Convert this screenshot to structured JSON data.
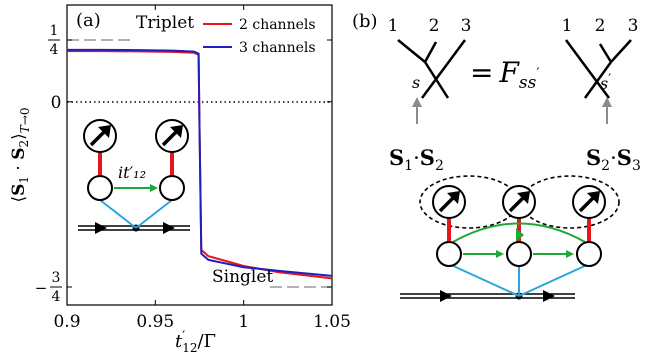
{
  "panel_a": {
    "label": "(a)",
    "ylabel": "⟨S₁ · S₂⟩_{T→0}",
    "xlabel": "t′₁₂/Γ",
    "yticks": [
      "1/4",
      "0",
      "−3/4"
    ],
    "xticks": [
      "0.9",
      "0.95",
      "1",
      "1.05"
    ],
    "triplet_label": "Triplet",
    "singlet_label": "Singlet",
    "legend": [
      "2 channels",
      "3 channels"
    ],
    "hopping_label": "it′₁₂"
  },
  "panel_b": {
    "label": "(b)",
    "tree_left_labels": [
      "1",
      "2",
      "3"
    ],
    "tree_right_labels": [
      "1",
      "2",
      "3"
    ],
    "s_label": "s",
    "s_prime_label": "s′",
    "equation": "= F_{ss′}",
    "left_operator": "S₁·S₂",
    "right_operator": "S₂·S₃"
  },
  "colors": {
    "red": "#e8141e",
    "blue": "#1f1fbf",
    "green": "#1fa83a",
    "cyan": "#2aa6dc",
    "gray": "#8c8c8c"
  },
  "chart_data": {
    "type": "line",
    "xlabel": "t′₁₂/Γ",
    "ylabel": "⟨S₁ · S₂⟩_{T→0}",
    "xlim": [
      0.9,
      1.05
    ],
    "ylim": [
      -0.8,
      0.29
    ],
    "x_ticks": [
      0.9,
      0.95,
      1.0,
      1.05
    ],
    "y_ticks": [
      0.25,
      0,
      -0.75
    ],
    "grid": false,
    "legend_position": "top-right",
    "reference_lines": [
      {
        "name": "Triplet",
        "y": 0.25,
        "style": "dashed"
      },
      {
        "name": "Zero",
        "y": 0,
        "style": "dotted"
      },
      {
        "name": "Singlet",
        "y": -0.75,
        "style": "dashed"
      }
    ],
    "series": [
      {
        "name": "2 channels",
        "color": "#e8141e",
        "x": [
          0.9,
          0.92,
          0.94,
          0.96,
          0.972,
          0.9745,
          0.975,
          0.976,
          0.98,
          1.0,
          1.02,
          1.05
        ],
        "y": [
          0.205,
          0.205,
          0.204,
          0.202,
          0.198,
          0.19,
          -0.1,
          -0.6,
          -0.625,
          -0.665,
          -0.69,
          -0.715
        ]
      },
      {
        "name": "3 channels",
        "color": "#1f1fbf",
        "x": [
          0.9,
          0.92,
          0.94,
          0.96,
          0.972,
          0.9745,
          0.975,
          0.976,
          0.98,
          1.0,
          1.02,
          1.05
        ],
        "y": [
          0.21,
          0.21,
          0.209,
          0.207,
          0.203,
          0.195,
          -0.1,
          -0.615,
          -0.64,
          -0.67,
          -0.685,
          -0.705
        ]
      }
    ]
  }
}
